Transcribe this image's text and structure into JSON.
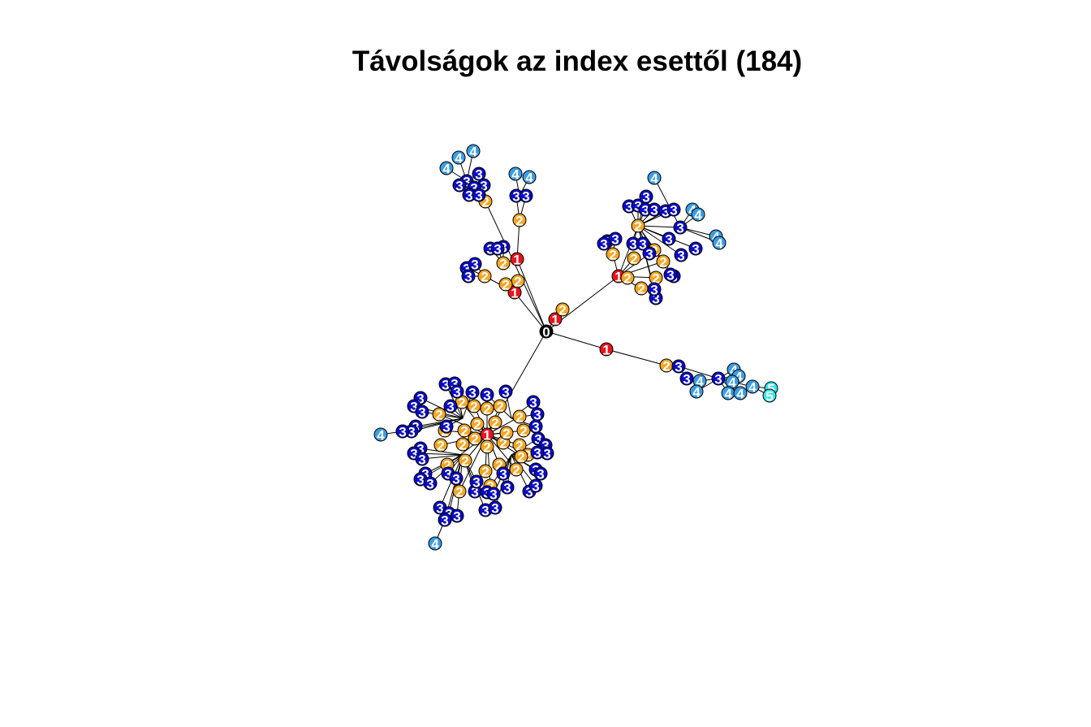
{
  "title": "Távolságok az index esettől (184)",
  "colors": {
    "d0": "#000000",
    "d1": "#e8141c",
    "d2": "#f5a623",
    "d3": "#0a0ac8",
    "d4": "#3a9ee6",
    "d5": "#33e8ea",
    "edge": "#000000",
    "node_border": "#000000",
    "label_light": "#ffffff",
    "label_dark": "#000000"
  },
  "graph": {
    "node_count": 184,
    "distance_labels": [
      "0",
      "1",
      "2",
      "3",
      "4",
      "5"
    ]
  }
}
